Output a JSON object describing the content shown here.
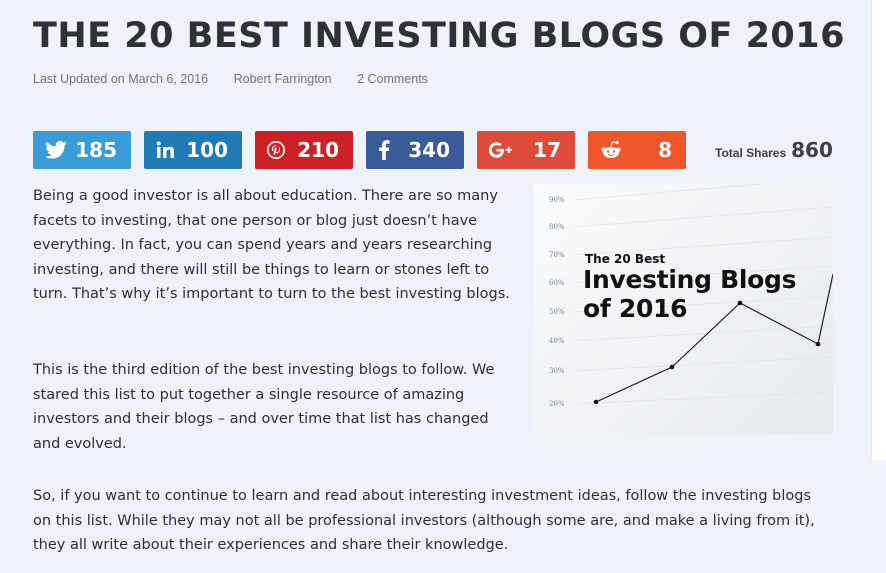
{
  "article": {
    "title": "THE 20 BEST INVESTING BLOGS OF 2016",
    "meta": {
      "updated": "Last Updated on March 6, 2016",
      "author": "Robert Farrington",
      "comments": "2 Comments"
    }
  },
  "share_bar": {
    "buttons": [
      {
        "network": "twitter",
        "icon": "twitter-bird-icon",
        "count": "185",
        "color": "#3a9bd9"
      },
      {
        "network": "linkedin",
        "icon": "linkedin-icon",
        "count": "100",
        "color": "#1f7bb6"
      },
      {
        "network": "pinterest",
        "icon": "pinterest-icon",
        "count": "210",
        "color": "#cc2127"
      },
      {
        "network": "facebook",
        "icon": "facebook-icon",
        "count": "340",
        "color": "#3b5a9a"
      },
      {
        "network": "googleplus",
        "icon": "google-plus-icon",
        "count": "17",
        "color": "#dd4b39"
      },
      {
        "network": "reddit",
        "icon": "reddit-alien-icon",
        "count": "8",
        "color": "#f0562a"
      }
    ],
    "total_label": "Total Shares",
    "total_value": "860"
  },
  "body": {
    "p1": "Being a good investor is all about education.  There are so many facets to investing, that one person or blog just doesn’t have everything.  In fact, you can spend years and years researching investing, and there will still be things to learn or stones left to turn. That’s why it’s important to turn to the best investing blogs.",
    "p2": "This is the third edition of the best investing blogs to follow. We stared this list to put together a single resource of amazing investors and their blogs – and over time that list has changed and evolved.",
    "p3": "So, if you want to continue to learn and read about interesting investment ideas, follow the investing blogs on this list.  While they may not all be professional investors (although some are, and make a living from it), they all write about their experiences and share their knowledge."
  },
  "hero_image": {
    "caption_small": "The 20 Best",
    "caption_line1": "Investing Blogs",
    "caption_line2": "of 2016",
    "y_ticks": [
      "90%",
      "80%",
      "70%",
      "60%",
      "50%",
      "40%",
      "30%",
      "20%"
    ]
  }
}
